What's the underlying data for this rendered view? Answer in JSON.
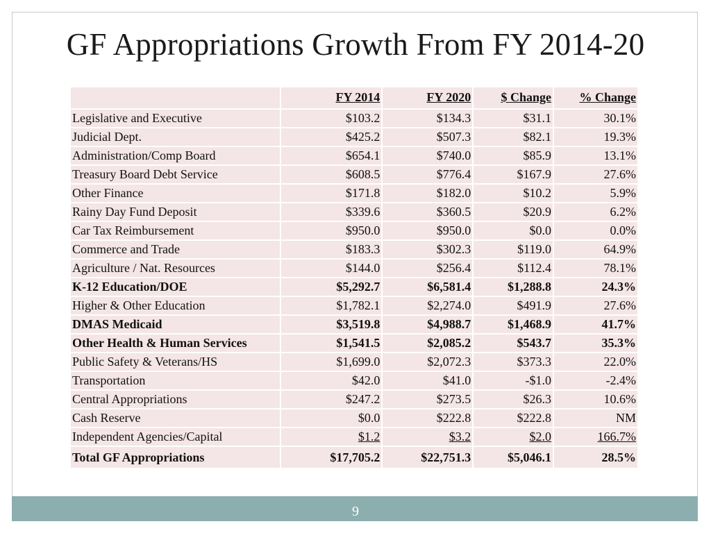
{
  "title": "GF Appropriations Growth From FY 2014-20",
  "table": {
    "columns": [
      "",
      "FY 2014",
      "FY 2020",
      "$ Change",
      "% Change"
    ],
    "rows": [
      {
        "label": "Legislative and Executive",
        "fy2014": "$103.2",
        "fy2020": "$134.3",
        "change": "$31.1",
        "pct": "30.1%"
      },
      {
        "label": "Judicial Dept.",
        "fy2014": "$425.2",
        "fy2020": "$507.3",
        "change": "$82.1",
        "pct": "19.3%"
      },
      {
        "label": "Administration/Comp Board",
        "fy2014": "$654.1",
        "fy2020": "$740.0",
        "change": "$85.9",
        "pct": "13.1%"
      },
      {
        "label": "Treasury Board Debt Service",
        "fy2014": "$608.5",
        "fy2020": "$776.4",
        "change": "$167.9",
        "pct": "27.6%"
      },
      {
        "label": "Other Finance",
        "fy2014": "$171.8",
        "fy2020": "$182.0",
        "change": "$10.2",
        "pct": "5.9%"
      },
      {
        "label": " Rainy Day Fund Deposit",
        "fy2014": "$339.6",
        "fy2020": "$360.5",
        "change": "$20.9",
        "pct": "6.2%"
      },
      {
        "label": "Car Tax Reimbursement",
        "fy2014": "$950.0",
        "fy2020": "$950.0",
        "change": "$0.0",
        "pct": "0.0%"
      },
      {
        "label": "Commerce and Trade",
        "fy2014": "$183.3",
        "fy2020": "$302.3",
        "change": "$119.0",
        "pct": "64.9%"
      },
      {
        "label": "Agriculture / Nat. Resources",
        "fy2014": "$144.0",
        "fy2020": "$256.4",
        "change": "$112.4",
        "pct": "78.1%"
      },
      {
        "label": "K-12 Education/DOE",
        "fy2014": "$5,292.7",
        "fy2020": "$6,581.4",
        "change": "$1,288.8",
        "pct": "24.3%"
      },
      {
        "label": "Higher & Other Education",
        "fy2014": "$1,782.1",
        "fy2020": "$2,274.0",
        "change": "$491.9",
        "pct": "27.6%"
      },
      {
        "label": "DMAS Medicaid",
        "fy2014": "$3,519.8",
        "fy2020": "$4,988.7",
        "change": "$1,468.9",
        "pct": "41.7%"
      },
      {
        "label": "Other Health & Human Services",
        "fy2014": "$1,541.5",
        "fy2020": "$2,085.2",
        "change": "$543.7",
        "pct": "35.3%"
      },
      {
        "label": "Public Safety & Veterans/HS",
        "fy2014": "$1,699.0",
        "fy2020": "$2,072.3",
        "change": "$373.3",
        "pct": "22.0%"
      },
      {
        "label": "Transportation",
        "fy2014": "$42.0",
        "fy2020": "$41.0",
        "change": "-$1.0",
        "pct": "-2.4%"
      },
      {
        "label": "Central Appropriations",
        "fy2014": "$247.2",
        "fy2020": "$273.5",
        "change": "$26.3",
        "pct": "10.6%"
      },
      {
        "label": "Cash Reserve",
        "fy2014": "$0.0",
        "fy2020": "$222.8",
        "change": "$222.8",
        "pct": "NM"
      },
      {
        "label": "Independent Agencies/Capital",
        "fy2014": "$1.2",
        "fy2020": "$3.2",
        "change": "$2.0",
        "pct": "166.7%"
      }
    ],
    "total": {
      "label": "Total GF Appropriations",
      "fy2014": "$17,705.2",
      "fy2020": "$22,751.3",
      "change": "$5,046.1",
      "pct": "28.5%"
    }
  },
  "page_number": "9",
  "colors": {
    "cell_bg": "#f4e5e6",
    "footer_bar": "#8caeae"
  }
}
